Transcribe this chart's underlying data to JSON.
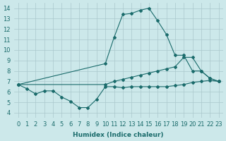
{
  "xlabel": "Humidex (Indice chaleur)",
  "bg_color": "#cce8ea",
  "grid_color": "#aac8cc",
  "line_color": "#1a6b6b",
  "xlim": [
    -0.5,
    23.5
  ],
  "ylim": [
    3.5,
    14.5
  ],
  "xticks": [
    0,
    1,
    2,
    3,
    4,
    5,
    6,
    7,
    8,
    9,
    10,
    11,
    12,
    13,
    14,
    15,
    16,
    17,
    18,
    19,
    20,
    21,
    22,
    23
  ],
  "yticks": [
    4,
    5,
    6,
    7,
    8,
    9,
    10,
    11,
    12,
    13,
    14
  ],
  "series": [
    {
      "x": [
        0,
        1,
        2,
        3,
        4,
        5,
        6,
        7,
        8,
        9,
        10,
        11,
        12,
        13,
        14,
        15,
        16,
        17,
        18,
        19,
        20,
        21,
        22,
        23
      ],
      "y": [
        6.7,
        6.3,
        5.8,
        6.1,
        6.1,
        5.5,
        5.1,
        4.5,
        4.5,
        5.3,
        6.5,
        6.5,
        6.4,
        6.5,
        6.5,
        6.5,
        6.5,
        6.5,
        6.6,
        6.7,
        6.9,
        7.0,
        7.1,
        7.0
      ]
    },
    {
      "x": [
        0,
        10,
        11,
        12,
        13,
        14,
        15,
        16,
        17,
        18,
        19,
        20,
        21,
        22,
        23
      ],
      "y": [
        6.7,
        8.7,
        11.2,
        13.4,
        13.5,
        13.8,
        14.0,
        12.8,
        11.5,
        9.5,
        9.5,
        8.0,
        8.0,
        7.3,
        7.0
      ]
    },
    {
      "x": [
        0,
        10,
        11,
        12,
        13,
        14,
        15,
        16,
        17,
        18,
        19,
        20,
        21,
        22,
        23
      ],
      "y": [
        6.7,
        6.7,
        7.0,
        7.2,
        7.4,
        7.6,
        7.8,
        8.0,
        8.2,
        8.4,
        9.3,
        9.3,
        8.0,
        7.3,
        7.0
      ]
    }
  ]
}
